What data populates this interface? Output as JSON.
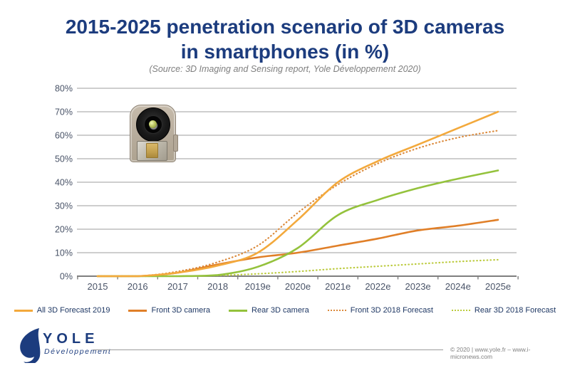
{
  "header": {
    "title_line1": "2015-2025 penetration scenario of 3D cameras",
    "title_line2": "in smartphones (in %)",
    "subtitle": "(Source: 3D Imaging and Sensing report, Yole Développement 2020)"
  },
  "chart_data": {
    "type": "line",
    "title": "2015-2025 penetration scenario of 3D cameras in smartphones (in %)",
    "categories": [
      "2015",
      "2016",
      "2017",
      "2018",
      "2019e",
      "2020e",
      "2021e",
      "2022e",
      "2023e",
      "2024e",
      "2025e"
    ],
    "series": [
      {
        "name": "All 3D Forecast 2019",
        "color": "#F3A93C",
        "style": "solid",
        "values": [
          0,
          0,
          1.5,
          4.5,
          10,
          24,
          40,
          49,
          56,
          63,
          70
        ]
      },
      {
        "name": "Front 3D camera",
        "color": "#E07F28",
        "style": "solid",
        "values": [
          0,
          0,
          1.5,
          5,
          8,
          10,
          13,
          16,
          19.5,
          21.5,
          24
        ]
      },
      {
        "name": "Rear 3D camera",
        "color": "#94C23C",
        "style": "solid",
        "values": [
          0,
          0,
          0,
          0.5,
          4,
          12,
          26,
          32.5,
          37.5,
          41.5,
          45
        ]
      },
      {
        "name": "Front 3D 2018 Forecast",
        "color": "#DB8A3C",
        "style": "dotted",
        "values": [
          0,
          0,
          2,
          6,
          13,
          27,
          39,
          48,
          54.5,
          59,
          62
        ]
      },
      {
        "name": "Rear 3D 2018 Forecast",
        "color": "#BCCB3E",
        "style": "dotted",
        "values": [
          0,
          0,
          0,
          0.3,
          1,
          2,
          3.2,
          4.2,
          5.2,
          6.2,
          7
        ]
      }
    ],
    "ylim": [
      0,
      80
    ],
    "ytick_step": 10,
    "ytick_suffix": "%",
    "grid": "horizontal",
    "legend_position": "bottom",
    "axis_label_color": "#4a5468",
    "gridline_color": "#9e9e9e",
    "baseline_color": "#7f7f7f"
  },
  "inset_image": {
    "alt": "3D camera module photo"
  },
  "footer": {
    "logo_text": "YOLE",
    "logo_subtext": "Développement",
    "copyright": "© 2020 | www.yole.fr – www.i-micronews.com"
  }
}
